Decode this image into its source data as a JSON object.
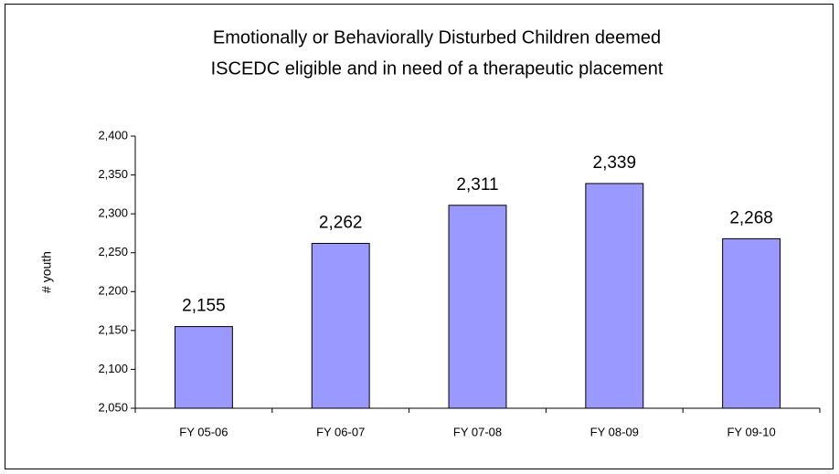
{
  "chart_data": {
    "type": "bar",
    "title": [
      "Emotionally or Behaviorally Disturbed Children deemed",
      "ISCEDC eligible and in need of a therapeutic placement"
    ],
    "ylabel": "# youth",
    "categories": [
      "FY 05-06",
      "FY 06-07",
      "FY 07-08",
      "FY 08-09",
      "FY 09-10"
    ],
    "values": [
      2155,
      2262,
      2311,
      2339,
      2268
    ],
    "value_labels": [
      "2,155",
      "2,262",
      "2,311",
      "2,339",
      "2,268"
    ],
    "color": "#9999ff",
    "ylim": [
      2050,
      2400
    ],
    "yticks": [
      {
        "value": 2050,
        "label": "2,050"
      },
      {
        "value": 2100,
        "label": "2,100"
      },
      {
        "value": 2150,
        "label": "2,150"
      },
      {
        "value": 2200,
        "label": "2,200"
      },
      {
        "value": 2250,
        "label": "2,250"
      },
      {
        "value": 2300,
        "label": "2,300"
      },
      {
        "value": 2350,
        "label": "2,350"
      },
      {
        "value": 2400,
        "label": "2,400"
      }
    ],
    "grid": false
  }
}
